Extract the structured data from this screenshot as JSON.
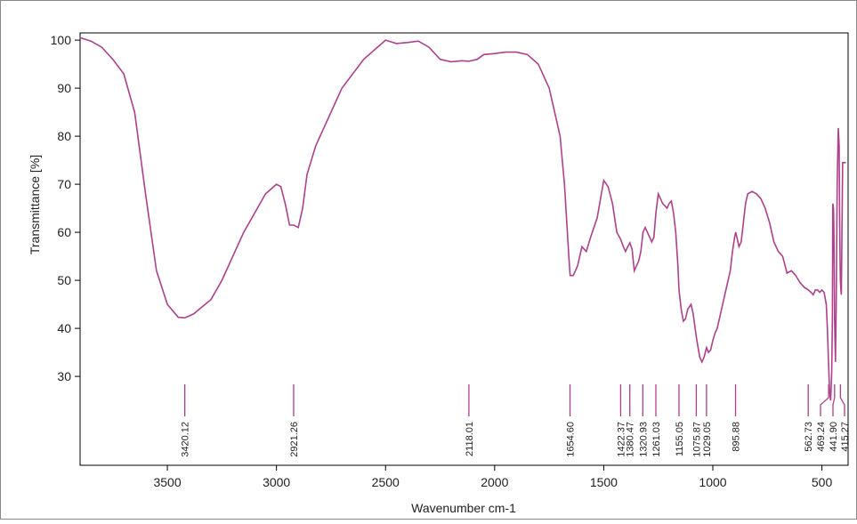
{
  "chart_data": {
    "type": "line",
    "title": "",
    "xlabel": "Wavenumber cm-1",
    "ylabel": "Transmittance [%]",
    "xlim": [
      3900,
      380
    ],
    "ylim": [
      11.5,
      101.5
    ],
    "x_reversed": true,
    "grid": false,
    "legend": "none",
    "x_ticks": [
      {
        "value": 3500,
        "label": "3500"
      },
      {
        "value": 3000,
        "label": "3000"
      },
      {
        "value": 2500,
        "label": "2500"
      },
      {
        "value": 2000,
        "label": "2000"
      },
      {
        "value": 1500,
        "label": "1500"
      },
      {
        "value": 1000,
        "label": "1000"
      },
      {
        "value": 500,
        "label": "500"
      }
    ],
    "y_ticks": [
      {
        "value": 100,
        "label": "100"
      },
      {
        "value": 90,
        "label": "90"
      },
      {
        "value": 80,
        "label": "80"
      },
      {
        "value": 70,
        "label": "70"
      },
      {
        "value": 60,
        "label": "60"
      },
      {
        "value": 50,
        "label": "50"
      },
      {
        "value": 40,
        "label": "40"
      },
      {
        "value": 30,
        "label": "30"
      }
    ],
    "peaks": [
      {
        "x": 3420.12,
        "label": "3420.12"
      },
      {
        "x": 2921.26,
        "label": "2921.26"
      },
      {
        "x": 2118.01,
        "label": "2118.01"
      },
      {
        "x": 1654.6,
        "label": "1654.60"
      },
      {
        "x": 1422.37,
        "label": "1422.37"
      },
      {
        "x": 1380.47,
        "label": "1380.47"
      },
      {
        "x": 1320.93,
        "label": "1320.93"
      },
      {
        "x": 1261.03,
        "label": "1261.03"
      },
      {
        "x": 1155.05,
        "label": "1155.05"
      },
      {
        "x": 1075.87,
        "label": "1075.87"
      },
      {
        "x": 1029.05,
        "label": "1029.05"
      },
      {
        "x": 895.88,
        "label": "895.88"
      },
      {
        "x": 562.73,
        "label": "562.73"
      },
      {
        "x": 469.24,
        "label": "469.24"
      },
      {
        "x": 441.9,
        "label": "441.90"
      },
      {
        "x": 415.27,
        "label": "415.27"
      }
    ],
    "series": [
      {
        "color": "#b0408c",
        "x": [
          3900,
          3850,
          3800,
          3750,
          3700,
          3650,
          3600,
          3550,
          3500,
          3450,
          3420,
          3380,
          3340,
          3300,
          3250,
          3200,
          3150,
          3100,
          3050,
          3000,
          2980,
          2960,
          2940,
          2921,
          2900,
          2880,
          2860,
          2820,
          2780,
          2700,
          2600,
          2500,
          2450,
          2400,
          2350,
          2300,
          2250,
          2200,
          2150,
          2118,
          2080,
          2050,
          2000,
          1950,
          1900,
          1850,
          1800,
          1750,
          1700,
          1680,
          1660,
          1654,
          1640,
          1620,
          1600,
          1580,
          1560,
          1530,
          1500,
          1480,
          1460,
          1440,
          1422,
          1410,
          1400,
          1390,
          1380,
          1370,
          1360,
          1340,
          1330,
          1320,
          1310,
          1300,
          1290,
          1280,
          1270,
          1261,
          1250,
          1230,
          1210,
          1200,
          1190,
          1180,
          1170,
          1160,
          1155,
          1145,
          1135,
          1125,
          1115,
          1100,
          1090,
          1075,
          1060,
          1050,
          1040,
          1029,
          1020,
          1010,
          1000,
          990,
          980,
          960,
          940,
          920,
          910,
          900,
          895,
          890,
          880,
          870,
          860,
          850,
          840,
          820,
          800,
          780,
          760,
          740,
          720,
          700,
          680,
          660,
          640,
          620,
          600,
          580,
          562,
          550,
          540,
          530,
          520,
          510,
          500,
          490,
          480,
          475,
          469,
          465,
          460,
          455,
          452,
          450,
          447,
          445,
          441.9,
          438,
          435,
          430,
          425,
          421,
          419,
          417,
          415.3,
          413,
          411,
          405,
          400,
          396,
          392,
          390
        ],
        "y": [
          100.5,
          99.8,
          98.5,
          96,
          93,
          85,
          68,
          52,
          45,
          42.3,
          42.2,
          43,
          44.5,
          46,
          50,
          55,
          60,
          64,
          68,
          70,
          69.5,
          66,
          61.5,
          61.5,
          61,
          65,
          72,
          78,
          82,
          90,
          96,
          100,
          99.3,
          99.5,
          99.8,
          98.5,
          96,
          95.5,
          95.7,
          95.6,
          96,
          97,
          97.2,
          97.5,
          97.5,
          97,
          95,
          90,
          80,
          70,
          55,
          51,
          51,
          53,
          57,
          56,
          59,
          63,
          70.8,
          69.5,
          66,
          60,
          58.5,
          57,
          56,
          57,
          57.8,
          56.5,
          52,
          54,
          56,
          60,
          61,
          60,
          59,
          58,
          59,
          64,
          68,
          66,
          65,
          66,
          66.5,
          64,
          60,
          53,
          48,
          44,
          41.5,
          42,
          44,
          45,
          43,
          38,
          34,
          33,
          34,
          36,
          35,
          35.5,
          37.5,
          39,
          40,
          44,
          48,
          52,
          56,
          59,
          60,
          59,
          57,
          58,
          62,
          66,
          68,
          68.5,
          68,
          67,
          65,
          62,
          58,
          56,
          55,
          51.5,
          52,
          51,
          49.5,
          48.5,
          48,
          47.5,
          47,
          48,
          48,
          47.5,
          48,
          47.5,
          45,
          40,
          32,
          27,
          25,
          31,
          42,
          66,
          65,
          60,
          42,
          33,
          43,
          70,
          81.7,
          78,
          64,
          55,
          50,
          48,
          47,
          74.5,
          74.5,
          74.5,
          74.5,
          74.5
        ]
      }
    ]
  }
}
